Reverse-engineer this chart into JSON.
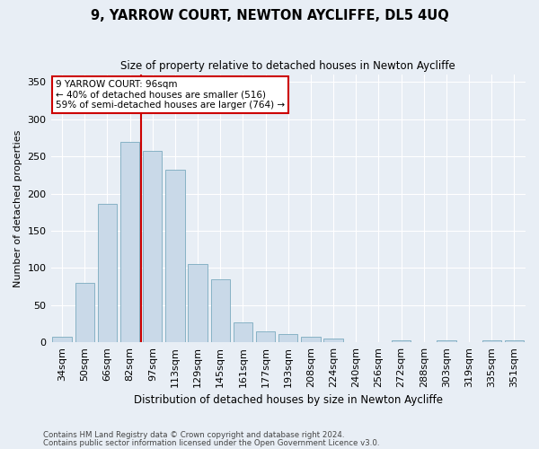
{
  "title": "9, YARROW COURT, NEWTON AYCLIFFE, DL5 4UQ",
  "subtitle": "Size of property relative to detached houses in Newton Aycliffe",
  "xlabel": "Distribution of detached houses by size in Newton Aycliffe",
  "ylabel": "Number of detached properties",
  "categories": [
    "34sqm",
    "50sqm",
    "66sqm",
    "82sqm",
    "97sqm",
    "113sqm",
    "129sqm",
    "145sqm",
    "161sqm",
    "177sqm",
    "193sqm",
    "208sqm",
    "224sqm",
    "240sqm",
    "256sqm",
    "272sqm",
    "288sqm",
    "303sqm",
    "319sqm",
    "335sqm",
    "351sqm"
  ],
  "values": [
    7,
    80,
    186,
    270,
    258,
    232,
    105,
    85,
    27,
    15,
    11,
    8,
    5,
    0,
    0,
    3,
    0,
    3,
    0,
    3,
    3
  ],
  "bar_color": "#c9d9e8",
  "bar_edge_color": "#7aaabf",
  "property_line_label": "9 YARROW COURT: 96sqm",
  "annotation_line1": "← 40% of detached houses are smaller (516)",
  "annotation_line2": "59% of semi-detached houses are larger (764) →",
  "line_color": "#cc0000",
  "ylim": [
    0,
    360
  ],
  "yticks": [
    0,
    50,
    100,
    150,
    200,
    250,
    300,
    350
  ],
  "footnote1": "Contains HM Land Registry data © Crown copyright and database right 2024.",
  "footnote2": "Contains public sector information licensed under the Open Government Licence v3.0.",
  "background_color": "#e8eef5",
  "plot_background_color": "#e8eef5",
  "line_x_index": 3.5
}
